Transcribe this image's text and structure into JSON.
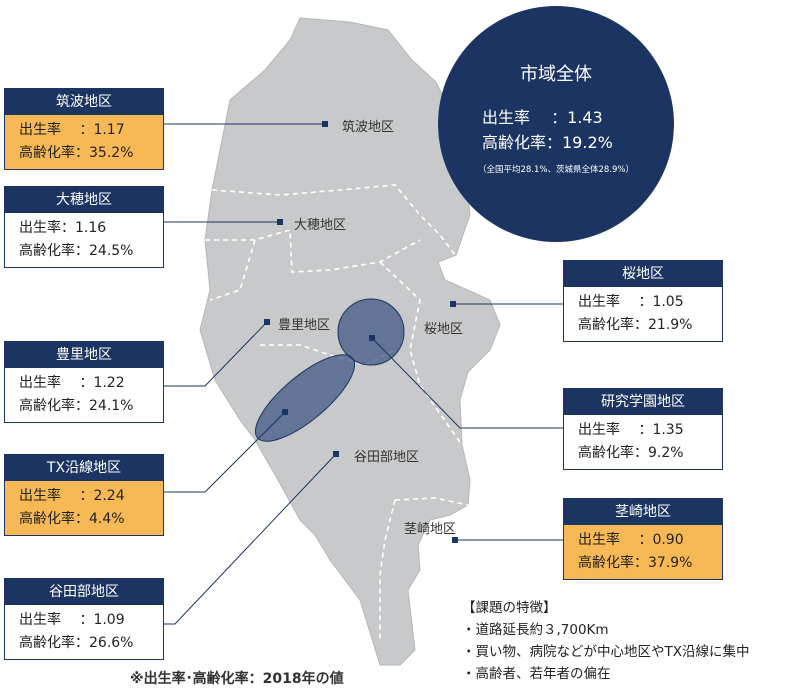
{
  "city": {
    "title": "市域全体",
    "birth": "出生率　 ：1.43",
    "aging": "高齢化率：19.2%",
    "note": "（全国平均28.1%、茨城県全体28.9%）"
  },
  "districts": [
    {
      "name": "筑波地区",
      "birth": "出生率　 ：1.17",
      "aging": "高齢化率：35.2%",
      "map_label": "筑波地区",
      "highlight": true
    },
    {
      "name": "大穂地区",
      "birth": "出生率：1.16",
      "aging": "高齢化率：24.5%",
      "map_label": "大穂地区",
      "highlight": false
    },
    {
      "name": "豊里地区",
      "birth": "出生率　 ：1.22",
      "aging": "高齢化率：24.1%",
      "map_label": "豊里地区",
      "highlight": false
    },
    {
      "name": "TX沿線地区",
      "birth": "出生率　 ：2.24",
      "aging": "高齢化率：4.4%",
      "highlight": true
    },
    {
      "name": "谷田部地区",
      "birth": "出生率　 ：1.09",
      "aging": "高齢化率：26.6%",
      "map_label": "谷田部地区",
      "highlight": false
    },
    {
      "name": "桜地区",
      "birth": "出生率　 ：1.05",
      "aging": "高齢化率：21.9%",
      "map_label": "桜地区",
      "highlight": false
    },
    {
      "name": "研究学園地区",
      "birth": "出生率　 ：1.35",
      "aging": "高齢化率：9.2%",
      "highlight": false
    },
    {
      "name": "茎崎地区",
      "birth": "出生率　 ：0.90",
      "aging": "高齢化率：37.9%",
      "map_label": "茎崎地区",
      "highlight": true
    }
  ],
  "features": {
    "title": "【課題の特徴】",
    "items": [
      "・道路延長約３,700Km",
      "・買い物、病院などが中心地区やTX沿線に集中",
      "・高齢者、若年者の偏在"
    ]
  },
  "footnote": "※出生率･高齢化率：2018年の値",
  "colors": {
    "navy": "#1c3461",
    "highlight": "#f7b955",
    "map": "#c8c9cb"
  }
}
